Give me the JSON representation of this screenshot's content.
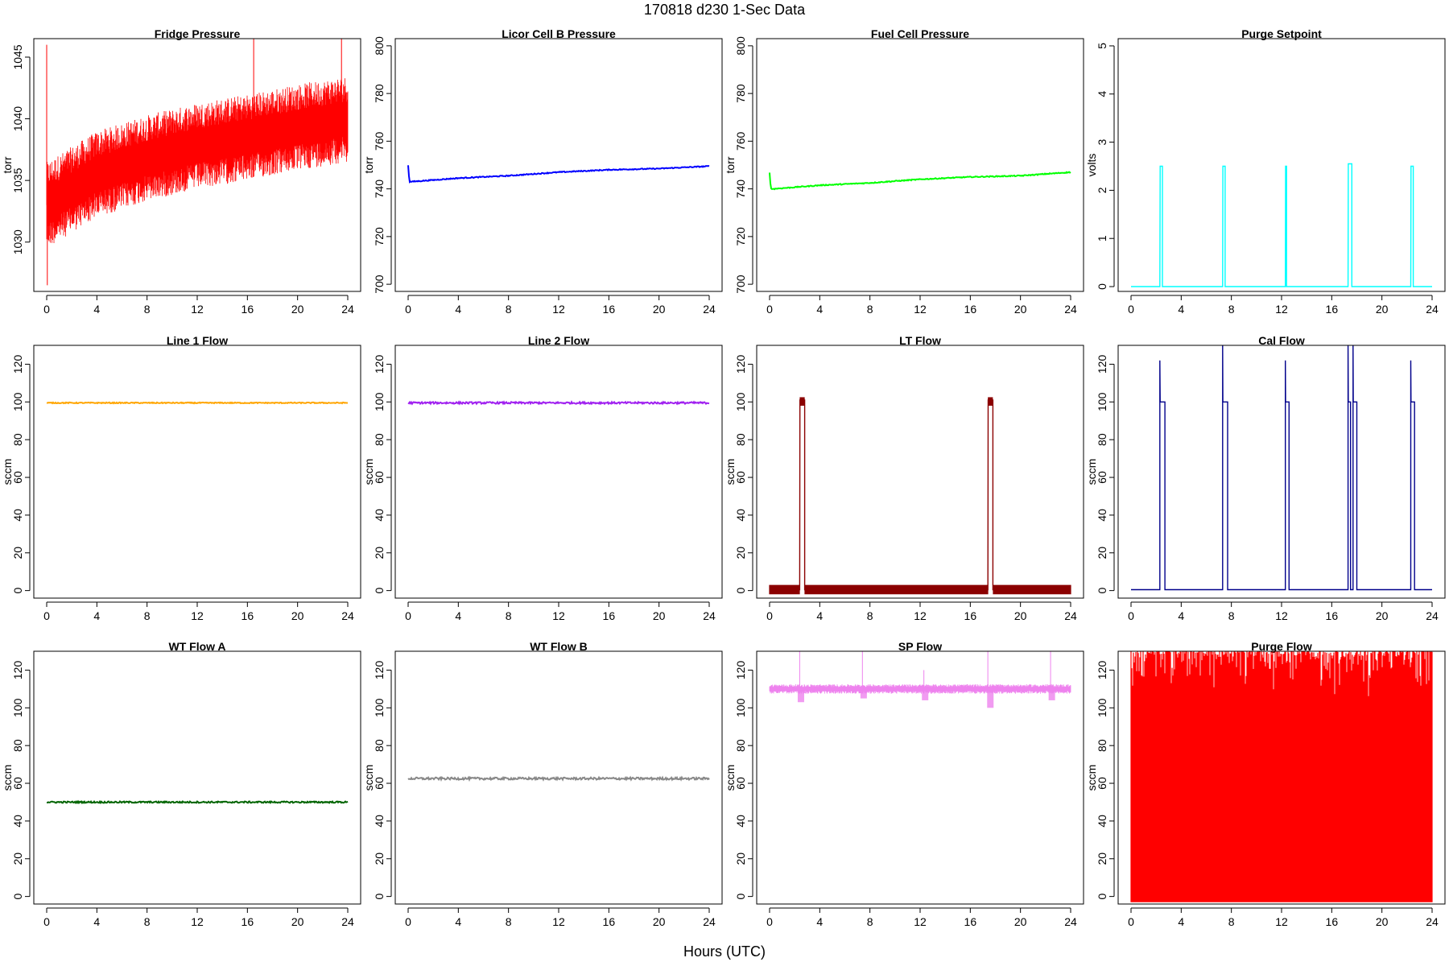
{
  "figure": {
    "title": "170818   d230   1-Sec Data",
    "xlabel": "Hours (UTC)"
  },
  "chart_data": [
    {
      "type": "line",
      "title": "Fridge Pressure",
      "ylabel": "torr",
      "color": "#ff0000",
      "xlim": [
        0,
        24
      ],
      "ylim": [
        1026,
        1046.5
      ],
      "xticks": [
        0,
        4,
        8,
        12,
        16,
        20,
        24
      ],
      "yticks": [
        1030,
        1035,
        1040,
        1045
      ],
      "series": [
        {
          "x": [
            0,
            4,
            8,
            12,
            16,
            20,
            24
          ],
          "y": [
            1033,
            1035.5,
            1036.8,
            1037.8,
            1038.5,
            1039.3,
            1040
          ],
          "noise_band": 3.5,
          "spikes": [
            {
              "x": 0,
              "y": 1046
            },
            {
              "x": 0.05,
              "y": 1026.5
            },
            {
              "x": 16.5,
              "y": 1047
            },
            {
              "x": 23.5,
              "y": 1047
            }
          ]
        }
      ]
    },
    {
      "type": "line",
      "title": "Licor Cell B Pressure",
      "ylabel": "torr",
      "color": "#0000ff",
      "xlim": [
        0,
        24
      ],
      "ylim": [
        697,
        803
      ],
      "xticks": [
        0,
        4,
        8,
        12,
        16,
        20,
        24
      ],
      "yticks": [
        700,
        720,
        740,
        760,
        780,
        800
      ],
      "series": [
        {
          "x": [
            0,
            0.1,
            0.2,
            4,
            8,
            12,
            16,
            20,
            24
          ],
          "y": [
            750,
            743,
            743,
            744.5,
            745.5,
            747,
            748,
            748.5,
            749.5
          ],
          "noise_band": 0.4
        }
      ]
    },
    {
      "type": "line",
      "title": "Fuel Cell Pressure",
      "ylabel": "torr",
      "color": "#00ff00",
      "xlim": [
        0,
        24
      ],
      "ylim": [
        697,
        803
      ],
      "xticks": [
        0,
        4,
        8,
        12,
        16,
        20,
        24
      ],
      "yticks": [
        700,
        720,
        740,
        760,
        780,
        800
      ],
      "series": [
        {
          "x": [
            0,
            0.1,
            0.3,
            4,
            8,
            12,
            16,
            20,
            24
          ],
          "y": [
            747,
            740,
            740,
            741.5,
            742.5,
            744,
            745,
            745.5,
            747
          ],
          "noise_band": 0.4
        }
      ]
    },
    {
      "type": "line",
      "title": "Purge Setpoint",
      "ylabel": "volts",
      "color": "#00ffff",
      "xlim": [
        0,
        24
      ],
      "ylim": [
        -0.1,
        5.15
      ],
      "xticks": [
        0,
        4,
        8,
        12,
        16,
        20,
        24
      ],
      "yticks": [
        0,
        1,
        2,
        3,
        4,
        5
      ],
      "pulses": [
        {
          "start": 2.3,
          "end": 2.5,
          "high": 2.5
        },
        {
          "start": 7.3,
          "end": 7.5,
          "high": 2.5
        },
        {
          "start": 12.3,
          "end": 12.4,
          "high": 2.5
        },
        {
          "start": 17.3,
          "end": 17.6,
          "high": 2.55
        },
        {
          "start": 22.3,
          "end": 22.5,
          "high": 2.5
        }
      ],
      "baseline": 0
    },
    {
      "type": "line",
      "title": "Line 1 Flow",
      "ylabel": "sccm",
      "color": "#ffa500",
      "xlim": [
        0,
        24
      ],
      "ylim": [
        -4,
        130
      ],
      "xticks": [
        0,
        4,
        8,
        12,
        16,
        20,
        24
      ],
      "yticks": [
        0,
        20,
        40,
        60,
        80,
        100,
        120
      ],
      "series": [
        {
          "x": [
            0,
            24
          ],
          "y": [
            99.5,
            99.5
          ],
          "noise_band": 0.5
        }
      ]
    },
    {
      "type": "line",
      "title": "Line 2 Flow",
      "ylabel": "sccm",
      "color": "#a020f0",
      "xlim": [
        0,
        24
      ],
      "ylim": [
        -4,
        130
      ],
      "xticks": [
        0,
        4,
        8,
        12,
        16,
        20,
        24
      ],
      "yticks": [
        0,
        20,
        40,
        60,
        80,
        100,
        120
      ],
      "series": [
        {
          "x": [
            0,
            24
          ],
          "y": [
            99.5,
            99.5
          ],
          "noise_band": 1
        }
      ]
    },
    {
      "type": "line",
      "title": "LT Flow",
      "ylabel": "sccm",
      "color": "#8b0000",
      "xlim": [
        0,
        24
      ],
      "ylim": [
        -4,
        130
      ],
      "xticks": [
        0,
        4,
        8,
        12,
        16,
        20,
        24
      ],
      "yticks": [
        0,
        20,
        40,
        60,
        80,
        100,
        120
      ],
      "pulses": [
        {
          "start": 2.4,
          "end": 2.8,
          "high": 101
        },
        {
          "start": 17.4,
          "end": 17.8,
          "high": 101
        }
      ],
      "baseline": 0.5,
      "noise_band": 2.5
    },
    {
      "type": "line",
      "title": "Cal Flow",
      "ylabel": "sccm",
      "color": "#00008b",
      "xlim": [
        0,
        24
      ],
      "ylim": [
        -4,
        130
      ],
      "xticks": [
        0,
        4,
        8,
        12,
        16,
        20,
        24
      ],
      "yticks": [
        0,
        20,
        40,
        60,
        80,
        100,
        120
      ],
      "pulses": [
        {
          "start": 2.3,
          "end": 2.7,
          "high": 100,
          "spike": 122
        },
        {
          "start": 7.3,
          "end": 7.7,
          "high": 100,
          "spike": 130
        },
        {
          "start": 12.3,
          "end": 12.6,
          "high": 100,
          "spike": 122
        },
        {
          "start": 17.3,
          "end": 17.5,
          "high": 100,
          "spike": 130
        },
        {
          "start": 17.7,
          "end": 18.0,
          "high": 100,
          "spike": 130
        },
        {
          "start": 22.3,
          "end": 22.6,
          "high": 100,
          "spike": 122
        }
      ],
      "baseline": 0.5
    },
    {
      "type": "line",
      "title": "WT Flow A",
      "ylabel": "sccm",
      "color": "#006400",
      "xlim": [
        0,
        24
      ],
      "ylim": [
        -4,
        130
      ],
      "xticks": [
        0,
        4,
        8,
        12,
        16,
        20,
        24
      ],
      "yticks": [
        0,
        20,
        40,
        60,
        80,
        100,
        120
      ],
      "series": [
        {
          "x": [
            0,
            24
          ],
          "y": [
            50,
            50
          ],
          "noise_band": 0.8
        }
      ]
    },
    {
      "type": "line",
      "title": "WT Flow B",
      "ylabel": "sccm",
      "color": "#888888",
      "xlim": [
        0,
        24
      ],
      "ylim": [
        -4,
        130
      ],
      "xticks": [
        0,
        4,
        8,
        12,
        16,
        20,
        24
      ],
      "yticks": [
        0,
        20,
        40,
        60,
        80,
        100,
        120
      ],
      "series": [
        {
          "x": [
            0,
            24
          ],
          "y": [
            62.5,
            62.5
          ],
          "noise_band": 1.2
        }
      ]
    },
    {
      "type": "line",
      "title": "SP Flow",
      "ylabel": "sccm",
      "color": "#ee82ee",
      "xlim": [
        0,
        24
      ],
      "ylim": [
        -4,
        130
      ],
      "xticks": [
        0,
        4,
        8,
        12,
        16,
        20,
        24
      ],
      "yticks": [
        0,
        20,
        40,
        60,
        80,
        100,
        120
      ],
      "series": [
        {
          "x": [
            0,
            24
          ],
          "y": [
            110,
            110
          ],
          "noise_band": 2.5
        }
      ],
      "dips": [
        {
          "x": 2.5,
          "y": 103
        },
        {
          "x": 7.5,
          "y": 105
        },
        {
          "x": 12.4,
          "y": 104
        },
        {
          "x": 17.6,
          "y": 100
        },
        {
          "x": 22.5,
          "y": 104
        }
      ],
      "spikes": [
        {
          "x": 2.4,
          "y": 130
        },
        {
          "x": 7.4,
          "y": 130
        },
        {
          "x": 12.3,
          "y": 120
        },
        {
          "x": 17.4,
          "y": 130
        },
        {
          "x": 22.4,
          "y": 130
        }
      ]
    },
    {
      "type": "line",
      "title": "Purge Flow",
      "ylabel": "sccm",
      "color": "#ff0000",
      "xlim": [
        0,
        24
      ],
      "ylim": [
        -4,
        130
      ],
      "xticks": [
        0,
        4,
        8,
        12,
        16,
        20,
        24
      ],
      "yticks": [
        0,
        20,
        40,
        60,
        80,
        100,
        120
      ],
      "series": [
        {
          "x": [
            0,
            24
          ],
          "y": [
            -3,
            130
          ],
          "fill": "full-range"
        }
      ]
    }
  ]
}
